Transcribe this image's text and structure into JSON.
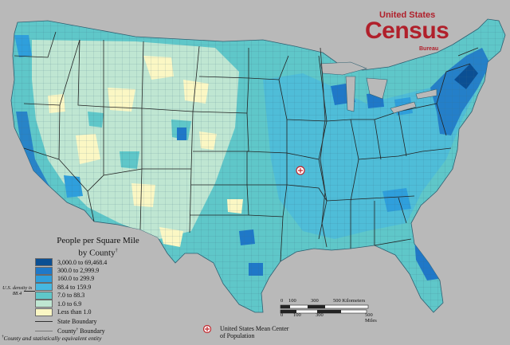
{
  "logo": {
    "line1": "United States",
    "line2": "Census",
    "line3": "Bureau"
  },
  "legend": {
    "title_line1": "People per Square Mile",
    "title_line2": "by County",
    "title_mark": "†",
    "classes": [
      {
        "label": "3,000.0 to 69,468.4",
        "color": "#0b4f93"
      },
      {
        "label": "300.0 to 2,999.9",
        "color": "#1f78c8"
      },
      {
        "label": "160.0 to 299.9",
        "color": "#2f9fdc"
      },
      {
        "label": "88.4 to 159.9",
        "color": "#46b8e1"
      },
      {
        "label": "7.0 to 88.3",
        "color": "#5fc7c9"
      },
      {
        "label": "1.0 to 6.9",
        "color": "#bfe6d2"
      },
      {
        "label": "Less than 1.0",
        "color": "#fbf7c4"
      }
    ],
    "state_boundary": "State Boundary",
    "county_boundary_a": "County",
    "county_boundary_mark": "†",
    "county_boundary_b": " Boundary"
  },
  "us_density": {
    "label": "U.S. density is",
    "value": "88.4"
  },
  "footnote": {
    "mark": "†",
    "text": "County and statistically equivalent entity"
  },
  "mean_center": {
    "line1": "United States Mean Center",
    "line2": "of Population"
  },
  "scale": {
    "km_ticks": [
      "0",
      "100",
      "300",
      "500 Kilometers"
    ],
    "mi_ticks": [
      "0",
      "100",
      "300",
      "500 Miles"
    ]
  },
  "colors": {
    "background": "#b9b9b9",
    "brand": "#b0202b",
    "marker": "#c0262c"
  }
}
